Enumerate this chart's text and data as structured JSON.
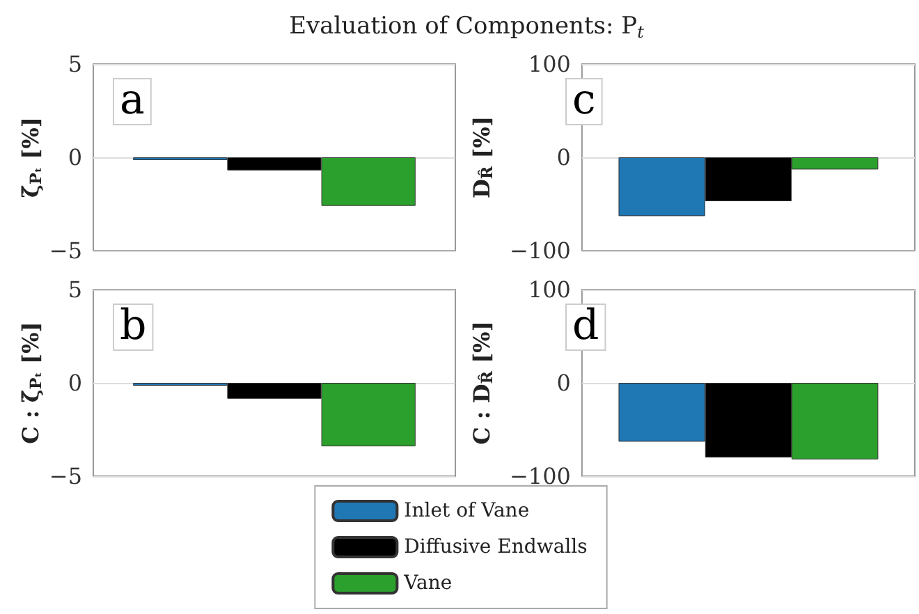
{
  "chart_data": [
    {
      "type": "bar",
      "title": "Evaluation of Components: P$_{t}$",
      "ylabel": "ζ̄$_{Pₜ}$ [%]",
      "annotations": [
        "a"
      ],
      "categories": [
        null
      ],
      "ylim": [
        -5,
        5
      ],
      "yticks": [
        -5,
        0,
        5
      ],
      "grid": "y",
      "legend": false,
      "series": [
        {
          "color": "#1f77b4",
          "values": [
            -0.15
          ]
        },
        {
          "color": "#000000",
          "values": [
            -0.7
          ]
        },
        {
          "color": "#2ca02c",
          "values": [
            -2.6
          ]
        }
      ]
    },
    {
      "type": "bar",
      "ylabel": "D$_{R̂}$ [%]",
      "annotations": [
        "c"
      ],
      "categories": [
        null
      ],
      "ylim": [
        -100,
        100
      ],
      "yticks": [
        -100,
        0,
        100
      ],
      "grid": "y",
      "legend": false,
      "series": [
        {
          "color": "#1f77b4",
          "values": [
            -63
          ]
        },
        {
          "color": "#000000",
          "values": [
            -47
          ]
        },
        {
          "color": "#2ca02c",
          "values": [
            -13
          ]
        }
      ]
    },
    {
      "type": "bar",
      "ylabel": "C : ζ̄$_{Pₜ}$ [%]",
      "annotations": [
        "b"
      ],
      "categories": [
        null
      ],
      "ylim": [
        -5,
        5
      ],
      "yticks": [
        -5,
        0,
        5
      ],
      "grid": "y",
      "legend": "bottom",
      "series": [
        {
          "name": "Inlet of Vane",
          "color": "#1f77b4",
          "values": [
            -0.15
          ]
        },
        {
          "name": "Diffusive Endwalls",
          "color": "#000000",
          "values": [
            -0.85
          ]
        },
        {
          "name": "Vane",
          "color": "#2ca02c",
          "values": [
            -3.4
          ]
        }
      ]
    },
    {
      "type": "bar",
      "ylabel": "C : D$_{R̂}$ [%]",
      "annotations": [
        "d"
      ],
      "categories": [
        null
      ],
      "ylim": [
        -100,
        100
      ],
      "yticks": [
        -100,
        0,
        100
      ],
      "grid": "y",
      "legend": false,
      "series": [
        {
          "color": "#1f77b4",
          "values": [
            -63
          ]
        },
        {
          "color": "#000000",
          "values": [
            -80
          ]
        },
        {
          "color": "#2ca02c",
          "values": [
            -82
          ]
        }
      ]
    }
  ]
}
